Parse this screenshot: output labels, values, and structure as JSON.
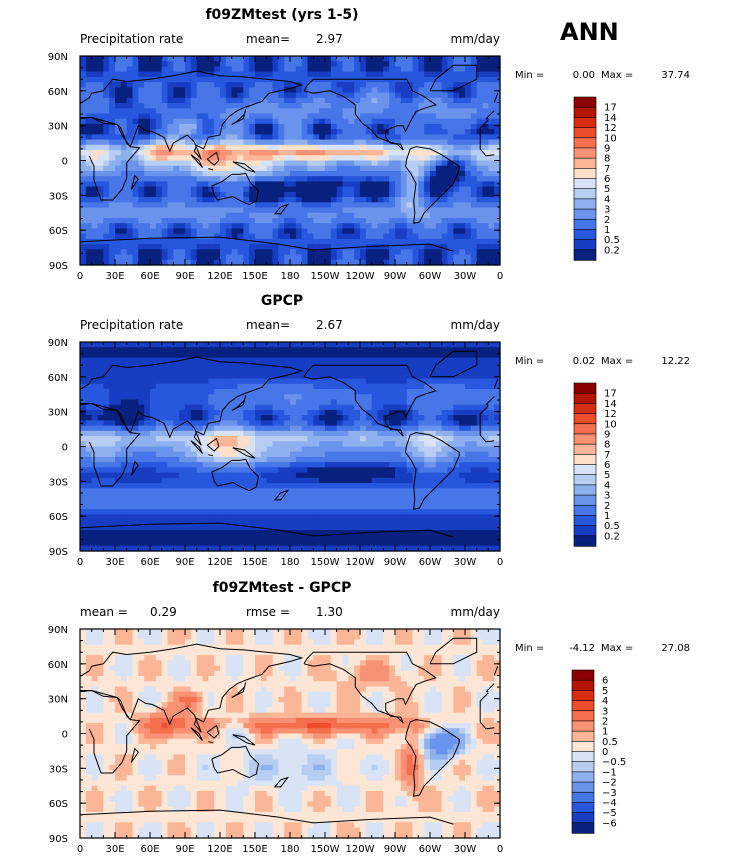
{
  "figure_label": "ANN",
  "chart_data": [
    {
      "type": "heatmap",
      "title": "f09ZMtest (yrs 1-5)",
      "left_label": "Precipitation rate",
      "center_label": "mean=",
      "center_value": "2.97",
      "units": "mm/day",
      "min_label": "Min =",
      "min_value": "0.00",
      "max_label": "Max =",
      "max_value": "37.74",
      "x_ticks": [
        "0",
        "30E",
        "60E",
        "90E",
        "120E",
        "150E",
        "180",
        "150W",
        "120W",
        "90W",
        "60W",
        "30W",
        "0"
      ],
      "y_ticks": [
        "90N",
        "60N",
        "30N",
        "0",
        "30S",
        "60S",
        "90S"
      ],
      "xlim": [
        0,
        360
      ],
      "ylim": [
        -90,
        90
      ],
      "colorbar_levels": [
        "17",
        "14",
        "12",
        "10",
        "9",
        "8",
        "7",
        "6",
        "5",
        "4",
        "3",
        "2",
        "1",
        "0.5",
        "0.2"
      ],
      "colorbar_colors": [
        "#8b0000",
        "#b31500",
        "#d42d10",
        "#ec4d2c",
        "#f56f4f",
        "#f99274",
        "#fbb597",
        "#fde0c9",
        "#d8e4f5",
        "#b7cdf1",
        "#8fb0ee",
        "#6a93ec",
        "#4676e8",
        "#2757dc",
        "#163dc2",
        "#08207e"
      ],
      "colorbar_reversed_order": true,
      "field": "precip_model"
    },
    {
      "type": "heatmap",
      "title": "GPCP",
      "left_label": "Precipitation rate",
      "center_label": "mean=",
      "center_value": "2.67",
      "units": "mm/day",
      "min_label": "Min =",
      "min_value": "0.02",
      "max_label": "Max =",
      "max_value": "12.22",
      "x_ticks": [
        "0",
        "30E",
        "60E",
        "90E",
        "120E",
        "150E",
        "180",
        "150W",
        "120W",
        "90W",
        "60W",
        "30W",
        "0"
      ],
      "y_ticks": [
        "90N",
        "60N",
        "30N",
        "0",
        "30S",
        "60S",
        "90S"
      ],
      "xlim": [
        0,
        360
      ],
      "ylim": [
        -90,
        90
      ],
      "colorbar_levels": [
        "17",
        "14",
        "12",
        "10",
        "9",
        "8",
        "7",
        "6",
        "5",
        "4",
        "3",
        "2",
        "1",
        "0.5",
        "0.2"
      ],
      "colorbar_colors": [
        "#8b0000",
        "#b31500",
        "#d42d10",
        "#ec4d2c",
        "#f56f4f",
        "#f99274",
        "#fbb597",
        "#fde0c9",
        "#d8e4f5",
        "#b7cdf1",
        "#8fb0ee",
        "#6a93ec",
        "#4676e8",
        "#2757dc",
        "#163dc2",
        "#08207e"
      ],
      "field": "precip_obs"
    },
    {
      "type": "heatmap",
      "title": "f09ZMtest - GPCP",
      "left_label": "mean =",
      "left_value": "0.29",
      "center_label": "rmse =",
      "center_value": "1.30",
      "units": "mm/day",
      "min_label": "Min =",
      "min_value": "-4.12",
      "max_label": "Max =",
      "max_value": "27.08",
      "x_ticks": [
        "0",
        "30E",
        "60E",
        "90E",
        "120E",
        "150E",
        "180",
        "150W",
        "120W",
        "90W",
        "60W",
        "30W",
        "0"
      ],
      "y_ticks": [
        "90N",
        "60N",
        "30N",
        "0",
        "30S",
        "60S",
        "90S"
      ],
      "xlim": [
        0,
        360
      ],
      "ylim": [
        -90,
        90
      ],
      "colorbar_levels": [
        "6",
        "5",
        "4",
        "3",
        "2",
        "1",
        "0.5",
        "0",
        "−0.5",
        "−1",
        "−2",
        "−3",
        "−4",
        "−5",
        "−6"
      ],
      "colorbar_colors": [
        "#8b0000",
        "#b31500",
        "#d42d10",
        "#ec4d2c",
        "#f56f4f",
        "#f99274",
        "#fbb597",
        "#fde6d6",
        "#d8e4f5",
        "#b7cdf1",
        "#8fb0ee",
        "#6a93ec",
        "#4676e8",
        "#2757dc",
        "#163dc2",
        "#08207e"
      ],
      "field": "precip_diff"
    }
  ]
}
